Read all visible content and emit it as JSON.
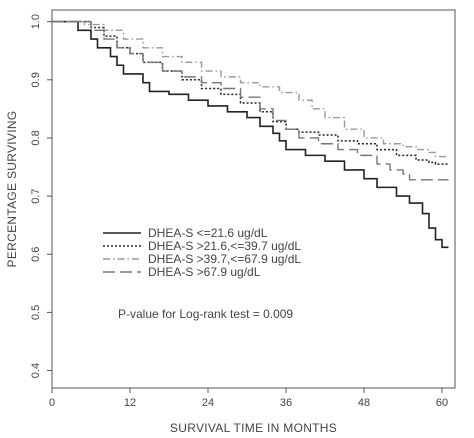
{
  "chart_data": {
    "type": "line",
    "xlabel": "SURVIVAL TIME IN MONTHS",
    "ylabel": "PERCENTAGE SURVIVING",
    "xlim": [
      0,
      62
    ],
    "ylim": [
      0.37,
      1.02
    ],
    "xticks": [
      0,
      12,
      24,
      36,
      48,
      60
    ],
    "xtick_labels": [
      "0",
      "12",
      "24",
      "36",
      "48",
      "60"
    ],
    "yticks": [
      0.4,
      0.5,
      0.6,
      0.7,
      0.8,
      0.9,
      1.0
    ],
    "ytick_labels": [
      "0.4",
      "0.5",
      "0.6",
      "0.7",
      "0.8",
      "0.9",
      "1.0"
    ],
    "grid": false,
    "legend_position": "middle-left",
    "annotation": "P-value for Log-rank test = 0.009",
    "series": [
      {
        "name": "DHEA-S <=21.6 ug/dL",
        "style": "solid",
        "color": "#222222",
        "points": [
          [
            0,
            1.0
          ],
          [
            3,
            1.0
          ],
          [
            4,
            0.985
          ],
          [
            6,
            0.97
          ],
          [
            7,
            0.955
          ],
          [
            9,
            0.94
          ],
          [
            10,
            0.925
          ],
          [
            11,
            0.91
          ],
          [
            14,
            0.895
          ],
          [
            15,
            0.88
          ],
          [
            18,
            0.875
          ],
          [
            21,
            0.865
          ],
          [
            24,
            0.855
          ],
          [
            27,
            0.845
          ],
          [
            30,
            0.835
          ],
          [
            32,
            0.82
          ],
          [
            34,
            0.808
          ],
          [
            35,
            0.795
          ],
          [
            36,
            0.78
          ],
          [
            39,
            0.77
          ],
          [
            42,
            0.76
          ],
          [
            45,
            0.745
          ],
          [
            48,
            0.73
          ],
          [
            50,
            0.715
          ],
          [
            53,
            0.7
          ],
          [
            55,
            0.688
          ],
          [
            57,
            0.67
          ],
          [
            58,
            0.645
          ],
          [
            59,
            0.625
          ],
          [
            60,
            0.612
          ],
          [
            61,
            0.612
          ]
        ]
      },
      {
        "name": "DHEA-S >21.6,<=39.7 ug/dL",
        "style": "dotted",
        "color": "#222222",
        "points": [
          [
            0,
            1.0
          ],
          [
            5,
            1.0
          ],
          [
            6,
            0.99
          ],
          [
            8,
            0.975
          ],
          [
            10,
            0.955
          ],
          [
            12,
            0.945
          ],
          [
            14,
            0.93
          ],
          [
            17,
            0.915
          ],
          [
            20,
            0.9
          ],
          [
            23,
            0.885
          ],
          [
            26,
            0.875
          ],
          [
            29,
            0.86
          ],
          [
            32,
            0.845
          ],
          [
            34,
            0.828
          ],
          [
            36,
            0.815
          ],
          [
            38,
            0.81
          ],
          [
            41,
            0.805
          ],
          [
            44,
            0.795
          ],
          [
            47,
            0.79
          ],
          [
            50,
            0.78
          ],
          [
            53,
            0.77
          ],
          [
            56,
            0.762
          ],
          [
            58,
            0.758
          ],
          [
            59,
            0.755
          ],
          [
            61,
            0.755
          ]
        ]
      },
      {
        "name": "DHEA-S >39.7,<=67.9 ug/dL",
        "style": "dashdot",
        "color": "#999999",
        "points": [
          [
            0,
            1.0
          ],
          [
            4,
            1.0
          ],
          [
            5,
            0.995
          ],
          [
            8,
            0.985
          ],
          [
            11,
            0.97
          ],
          [
            14,
            0.955
          ],
          [
            17,
            0.94
          ],
          [
            20,
            0.93
          ],
          [
            23,
            0.915
          ],
          [
            26,
            0.905
          ],
          [
            29,
            0.895
          ],
          [
            32,
            0.888
          ],
          [
            35,
            0.878
          ],
          [
            38,
            0.865
          ],
          [
            40,
            0.85
          ],
          [
            42,
            0.835
          ],
          [
            45,
            0.815
          ],
          [
            48,
            0.8
          ],
          [
            51,
            0.79
          ],
          [
            54,
            0.785
          ],
          [
            56,
            0.78
          ],
          [
            58,
            0.775
          ],
          [
            59,
            0.768
          ],
          [
            61,
            0.768
          ]
        ]
      },
      {
        "name": "DHEA-S >67.9 ug/dL",
        "style": "longdash",
        "color": "#777777",
        "points": [
          [
            0,
            1.0
          ],
          [
            4,
            1.0
          ],
          [
            6,
            0.985
          ],
          [
            8,
            0.97
          ],
          [
            10,
            0.955
          ],
          [
            12,
            0.945
          ],
          [
            14,
            0.93
          ],
          [
            17,
            0.915
          ],
          [
            20,
            0.905
          ],
          [
            23,
            0.895
          ],
          [
            26,
            0.885
          ],
          [
            29,
            0.87
          ],
          [
            32,
            0.85
          ],
          [
            34,
            0.83
          ],
          [
            36,
            0.815
          ],
          [
            38,
            0.8
          ],
          [
            41,
            0.79
          ],
          [
            44,
            0.78
          ],
          [
            47,
            0.77
          ],
          [
            50,
            0.755
          ],
          [
            52,
            0.745
          ],
          [
            54,
            0.738
          ],
          [
            55,
            0.728
          ],
          [
            56,
            0.728
          ],
          [
            61,
            0.728
          ]
        ]
      }
    ]
  }
}
